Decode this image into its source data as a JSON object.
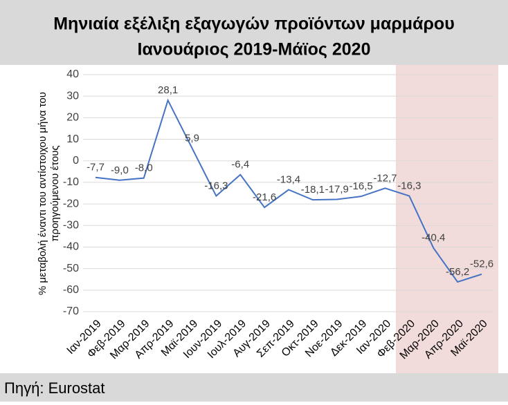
{
  "chart_data": {
    "type": "line",
    "title": "Μηνιαία εξέλιξη εξαγωγών προϊόντων μαρμάρου",
    "subtitle": "Ιανουάριος 2019-Μάϊος 2020",
    "source": "Πηγή: Eurostat",
    "ylabel": [
      "% μεταβολή έναντι του αντίστοιχου μήνα του",
      "προηγούμενου έτους"
    ],
    "categories": [
      "Ιαν-2019",
      "Φεβ-2019",
      "Μαρ-2019",
      "Απρ-2019",
      "Μαϊ-2019",
      "Ιουν-2019",
      "Ιουλ-2019",
      "Αυγ-2019",
      "Σεπ-2019",
      "Οκτ-2019",
      "Νοε-2019",
      "Δεκ-2019",
      "Ιαν-2020",
      "Φεβ-2020",
      "Μαρ-2020",
      "Απρ-2020",
      "Μαϊ-2020"
    ],
    "values": [
      -7.7,
      -9.0,
      -8.0,
      28.1,
      5.9,
      -16.3,
      -6.4,
      -21.6,
      -13.4,
      -18.1,
      -17.9,
      -16.5,
      -12.7,
      -16.3,
      -40.4,
      -56.2,
      -52.6
    ],
    "value_labels": [
      "-7,7",
      "-9,0",
      "-8,0",
      "28,1",
      "5,9",
      "-16,3",
      "-6,4",
      "-21,6",
      "-13,4",
      "-18,1",
      "-17,9",
      "-16,5",
      "-12,7",
      "-16,3",
      "-40,4",
      "-56,2",
      "-52,6"
    ],
    "color": "#4472c4",
    "ylim": [
      -70,
      40
    ],
    "yticks": [
      40,
      30,
      20,
      10,
      0,
      -10,
      -20,
      -30,
      -40,
      -50,
      -60,
      -70
    ],
    "grid": true
  }
}
